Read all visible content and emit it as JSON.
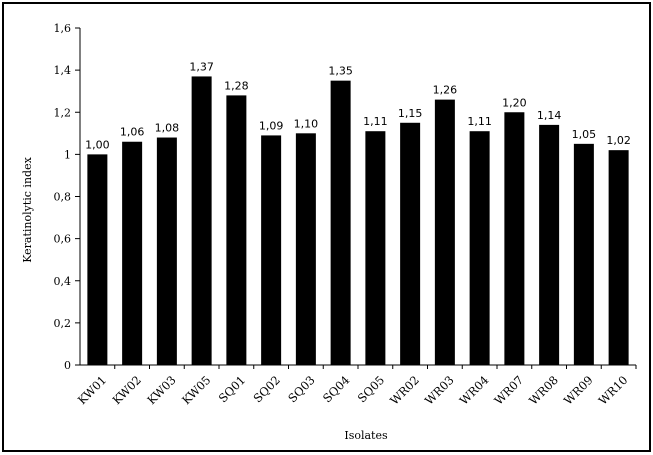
{
  "chart_data": {
    "type": "bar",
    "categories": [
      "KW01",
      "KW02",
      "KW03",
      "KW05",
      "SQ01",
      "SQ02",
      "SQ03",
      "SQ04",
      "SQ05",
      "WR02",
      "WR03",
      "WR04",
      "WR07",
      "WR08",
      "WR09",
      "WR10"
    ],
    "values": [
      1.0,
      1.06,
      1.08,
      1.37,
      1.28,
      1.09,
      1.1,
      1.35,
      1.11,
      1.15,
      1.26,
      1.11,
      1.2,
      1.14,
      1.05,
      1.02
    ],
    "data_labels": [
      "1,00",
      "1,06",
      "1,08",
      "1,37",
      "1,28",
      "1,09",
      "1,10",
      "1,35",
      "1,11",
      "1,15",
      "1,26",
      "1,11",
      "1,20",
      "1,14",
      "1,05",
      "1,02"
    ],
    "ylim": [
      0,
      1.6
    ],
    "yticks": [
      0,
      0.2,
      0.4,
      0.6,
      0.8,
      1.0,
      1.2,
      1.4,
      1.6
    ],
    "ytick_labels": [
      "0",
      "0,2",
      "0,4",
      "0,6",
      "0,8",
      "1",
      "1,2",
      "1,4",
      "1,6"
    ],
    "xlabel": "Isolates",
    "ylabel": "Keratinolytic index",
    "title": "",
    "grid": false,
    "bar_color": "#000000"
  }
}
